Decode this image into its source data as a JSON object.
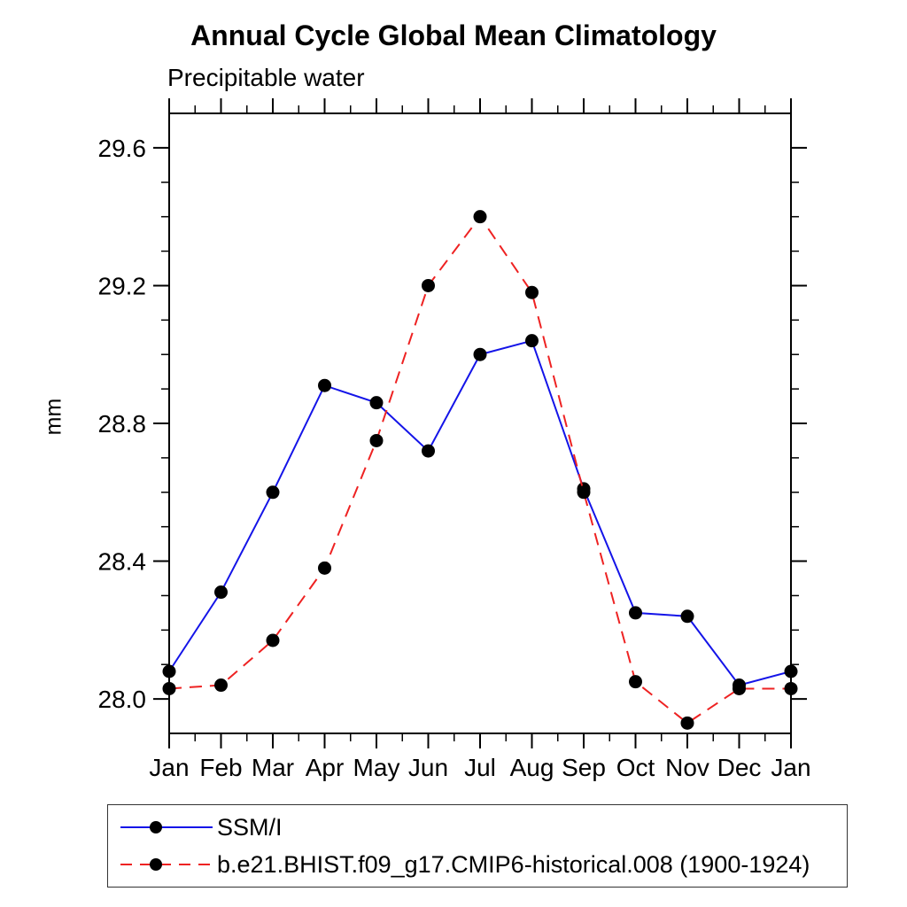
{
  "header": {
    "title": "Annual Cycle Global Mean Climatology",
    "subtitle": "Precipitable water"
  },
  "chart_data": {
    "type": "line",
    "title": "Annual Cycle Global Mean Climatology",
    "subtitle": "Precipitable water",
    "ylabel": "mm",
    "xlabel": "",
    "x_categories": [
      "Jan",
      "Feb",
      "Mar",
      "Apr",
      "May",
      "Jun",
      "Jul",
      "Aug",
      "Sep",
      "Oct",
      "Nov",
      "Dec",
      "Jan"
    ],
    "ylim": [
      27.9,
      29.7
    ],
    "yticks": [
      28.0,
      28.4,
      28.8,
      29.2,
      29.6
    ],
    "ytick_labels": [
      "28.0",
      "28.4",
      "28.8",
      "29.2",
      "29.6"
    ],
    "minor_tick_step": 0.1,
    "grid": false,
    "legend_position": "bottom",
    "series": [
      {
        "name": "SSM/I",
        "color": "#1414e8",
        "line_style": "solid",
        "marker": "filled-circle",
        "marker_color": "#000000",
        "values": [
          28.08,
          28.31,
          28.6,
          28.91,
          28.86,
          28.72,
          29.0,
          29.04,
          28.61,
          28.25,
          28.24,
          28.04,
          28.08
        ]
      },
      {
        "name": "b.e21.BHIST.f09_g17.CMIP6-historical.008 (1900-1924)",
        "color": "#ee2222",
        "line_style": "dashed",
        "marker": "filled-circle",
        "marker_color": "#000000",
        "values": [
          28.03,
          28.04,
          28.17,
          28.38,
          28.75,
          29.2,
          29.4,
          29.18,
          28.6,
          28.05,
          27.93,
          28.03,
          28.03
        ]
      }
    ]
  },
  "colors": {
    "axis": "#000000",
    "text": "#000000",
    "background": "#ffffff",
    "marker": "#000000"
  }
}
